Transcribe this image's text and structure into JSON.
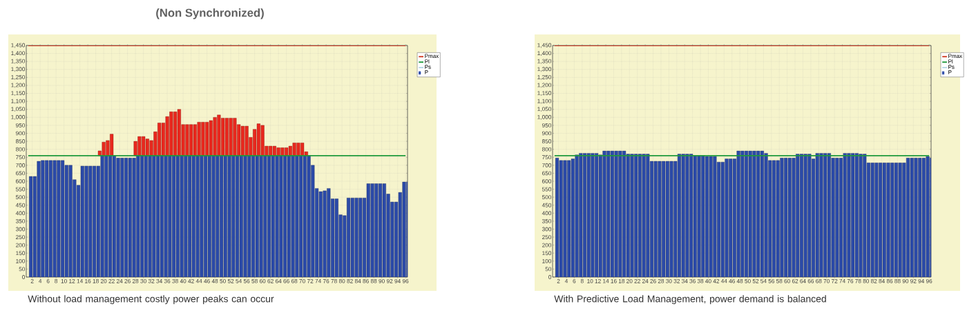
{
  "chart_data": [
    {
      "type": "bar",
      "title": "(Non Synchronized)",
      "stacked": true,
      "grid": true,
      "legend": "right",
      "categories": [
        null,
        "2",
        null,
        "4",
        null,
        "6",
        null,
        "8",
        null,
        "10",
        null,
        "12",
        null,
        "14",
        null,
        "16",
        null,
        "18",
        null,
        "20",
        null,
        "22",
        null,
        "24",
        null,
        "26",
        null,
        "28",
        null,
        "30",
        null,
        "32",
        null,
        "34",
        null,
        "36",
        null,
        "38",
        null,
        "40",
        null,
        "42",
        null,
        "44",
        null,
        "46",
        null,
        "48",
        null,
        "50",
        null,
        "52",
        null,
        "54",
        null,
        "56",
        null,
        "58",
        null,
        "60",
        null,
        "62",
        null,
        "64",
        null,
        "66",
        null,
        "68",
        null,
        "70",
        null,
        "72",
        null,
        "74",
        null,
        "76",
        null,
        "78",
        null,
        "80",
        null,
        "82",
        null,
        "84",
        null,
        "86",
        null,
        "88",
        null,
        "90",
        null,
        "92",
        null,
        "94",
        null,
        "96"
      ],
      "ylim": [
        0,
        1450
      ],
      "yticks": [
        0,
        50,
        100,
        150,
        200,
        250,
        300,
        350,
        400,
        450,
        500,
        550,
        600,
        650,
        700,
        750,
        800,
        850,
        900,
        950,
        {
          "value": 1000,
          "label": "1,000"
        },
        {
          "value": 1050,
          "label": "1,050"
        },
        {
          "value": 1100,
          "label": "1,100"
        },
        {
          "value": 1150,
          "label": "1,150"
        },
        {
          "value": 1200,
          "label": "1,200"
        },
        {
          "value": 1250,
          "label": "1,250"
        },
        {
          "value": 1300,
          "label": "1,300"
        },
        {
          "value": 1350,
          "label": "1,350"
        },
        {
          "value": 1400,
          "label": "1,400"
        },
        {
          "value": 1450,
          "label": "1,450"
        }
      ],
      "series": [
        {
          "name": "Pmax",
          "type": "line",
          "color": "#d23a22",
          "values": [
            1450,
            1450,
            1450,
            1450,
            1450,
            1450,
            1450,
            1450,
            1450,
            1450,
            1450,
            1450,
            1450,
            1450,
            1450,
            1450,
            1450,
            1450,
            1450,
            1450,
            1450,
            1450,
            1450,
            1450,
            1450,
            1450,
            1450,
            1450,
            1450,
            1450,
            1450,
            1450,
            1450,
            1450,
            1450,
            1450,
            1450,
            1450,
            1450,
            1450,
            1450,
            1450,
            1450,
            1450,
            1450,
            1450,
            1450,
            1450,
            1450,
            1450,
            1450,
            1450,
            1450,
            1450,
            1450,
            1450,
            1450,
            1450,
            1450,
            1450,
            1450,
            1450,
            1450,
            1450,
            1450,
            1450,
            1450,
            1450,
            1450,
            1450,
            1450,
            1450,
            1450,
            1450,
            1450,
            1450,
            1450,
            1450,
            1450,
            1450,
            1450,
            1450,
            1450,
            1450,
            1450,
            1450,
            1450,
            1450,
            1450,
            1450,
            1450,
            1450,
            1450,
            1450,
            1450,
            1450
          ]
        },
        {
          "name": "Pl",
          "type": "line",
          "color": "#1f9a3c",
          "values": [
            760,
            760,
            760,
            760,
            760,
            760,
            760,
            760,
            760,
            760,
            760,
            760,
            760,
            760,
            760,
            760,
            760,
            760,
            760,
            760,
            760,
            760,
            760,
            760,
            760,
            760,
            760,
            760,
            760,
            760,
            760,
            760,
            760,
            760,
            760,
            760,
            760,
            760,
            760,
            760,
            760,
            760,
            760,
            760,
            760,
            760,
            760,
            760,
            760,
            760,
            760,
            760,
            760,
            760,
            760,
            760,
            760,
            760,
            760,
            760,
            760,
            760,
            760,
            760,
            760,
            760,
            760,
            760,
            760,
            760,
            760,
            760,
            760,
            760,
            760,
            760,
            760,
            760,
            760,
            760,
            760,
            760,
            760,
            760,
            760,
            760,
            760,
            760,
            760,
            760,
            760,
            760,
            760,
            760,
            760,
            760
          ]
        },
        {
          "name": "Ps",
          "type": "line",
          "color": "#b8d8e8",
          "values": [
            null,
            null,
            null,
            null,
            null,
            null,
            null,
            null,
            null,
            null,
            null,
            null,
            null,
            null,
            null,
            null,
            null,
            null,
            null,
            null,
            null,
            null,
            null,
            null,
            null,
            null,
            null,
            null,
            null,
            null,
            null,
            null,
            null,
            null,
            null,
            null,
            null,
            null,
            null,
            null,
            null,
            null,
            null,
            null,
            null,
            null,
            null,
            null,
            null,
            null,
            null,
            null,
            null,
            null,
            null,
            null,
            null,
            null,
            null,
            null,
            null,
            null,
            null,
            null,
            null,
            null,
            null,
            null,
            null,
            null,
            null,
            null,
            null,
            null,
            null,
            null,
            null,
            null,
            null,
            null,
            null,
            null,
            null,
            null,
            null,
            null,
            null,
            null,
            null,
            null,
            null,
            null,
            null,
            null,
            null,
            null
          ]
        },
        {
          "name": "P",
          "color": "#2b4aa8",
          "values": [
            630,
            630,
            725,
            730,
            730,
            730,
            730,
            730,
            730,
            700,
            700,
            610,
            575,
            695,
            695,
            695,
            695,
            695,
            760,
            760,
            760,
            760,
            745,
            745,
            745,
            745,
            745,
            760,
            760,
            760,
            760,
            760,
            760,
            760,
            760,
            760,
            760,
            760,
            760,
            760,
            760,
            760,
            760,
            760,
            760,
            760,
            760,
            760,
            760,
            760,
            760,
            760,
            760,
            760,
            760,
            760,
            760,
            760,
            760,
            760,
            760,
            760,
            760,
            760,
            760,
            760,
            760,
            760,
            760,
            760,
            760,
            700,
            555,
            535,
            540,
            555,
            490,
            490,
            390,
            385,
            495,
            495,
            495,
            495,
            495,
            585,
            585,
            585,
            585,
            585,
            520,
            470,
            470,
            530,
            595,
            595
          ]
        },
        {
          "color": "#e8281e",
          "values": [
            null,
            null,
            null,
            null,
            null,
            null,
            null,
            null,
            null,
            null,
            null,
            null,
            null,
            null,
            null,
            null,
            null,
            null,
            30,
            85,
            95,
            135,
            null,
            null,
            null,
            null,
            null,
            90,
            120,
            120,
            105,
            95,
            150,
            205,
            205,
            245,
            275,
            275,
            290,
            195,
            195,
            195,
            195,
            210,
            210,
            210,
            220,
            240,
            255,
            235,
            235,
            235,
            235,
            195,
            185,
            185,
            115,
            165,
            200,
            190,
            60,
            60,
            60,
            50,
            50,
            50,
            60,
            80,
            80,
            80,
            25,
            null,
            null,
            null,
            null,
            null,
            null,
            null,
            null,
            null,
            null,
            null,
            null,
            null,
            null,
            null,
            null,
            null,
            null,
            null,
            null,
            null,
            null,
            null,
            null,
            null
          ]
        }
      ],
      "annotations": [
        "Without load management costly power peaks can occur"
      ]
    },
    {
      "type": "bar",
      "grid": true,
      "legend": "right",
      "categories": [
        null,
        "2",
        null,
        "4",
        null,
        "6",
        null,
        "8",
        null,
        "10",
        null,
        "12",
        null,
        "14",
        null,
        "16",
        null,
        "18",
        null,
        "20",
        null,
        "22",
        null,
        "24",
        null,
        "26",
        null,
        "28",
        null,
        "30",
        null,
        "32",
        null,
        "34",
        null,
        "36",
        null,
        "38",
        null,
        "40",
        null,
        "42",
        null,
        "44",
        null,
        "46",
        null,
        "48",
        null,
        "50",
        null,
        "52",
        null,
        "54",
        null,
        "56",
        null,
        "58",
        null,
        "60",
        null,
        "62",
        null,
        "64",
        null,
        "66",
        null,
        "68",
        null,
        "70",
        null,
        "72",
        null,
        "74",
        null,
        "76",
        null,
        "78",
        null,
        "80",
        null,
        "82",
        null,
        "84",
        null,
        "86",
        null,
        "88",
        null,
        "90",
        null,
        "92",
        null,
        "94",
        null,
        "96"
      ],
      "ylim": [
        0,
        1450
      ],
      "yticks": [
        0,
        50,
        100,
        150,
        200,
        250,
        300,
        350,
        400,
        450,
        500,
        550,
        600,
        650,
        700,
        750,
        800,
        850,
        900,
        950,
        {
          "value": 1000,
          "label": "1,000"
        },
        {
          "value": 1050,
          "label": "1,050"
        },
        {
          "value": 1100,
          "label": "1,100"
        },
        {
          "value": 1150,
          "label": "1,150"
        },
        {
          "value": 1200,
          "label": "1,200"
        },
        {
          "value": 1250,
          "label": "1,250"
        },
        {
          "value": 1300,
          "label": "1,300"
        },
        {
          "value": 1350,
          "label": "1,350"
        },
        {
          "value": 1400,
          "label": "1,400"
        },
        {
          "value": 1450,
          "label": "1,450"
        }
      ],
      "series": [
        {
          "name": "Pmax",
          "type": "line",
          "color": "#d23a22",
          "values": [
            1450,
            1450,
            1450,
            1450,
            1450,
            1450,
            1450,
            1450,
            1450,
            1450,
            1450,
            1450,
            1450,
            1450,
            1450,
            1450,
            1450,
            1450,
            1450,
            1450,
            1450,
            1450,
            1450,
            1450,
            1450,
            1450,
            1450,
            1450,
            1450,
            1450,
            1450,
            1450,
            1450,
            1450,
            1450,
            1450,
            1450,
            1450,
            1450,
            1450,
            1450,
            1450,
            1450,
            1450,
            1450,
            1450,
            1450,
            1450,
            1450,
            1450,
            1450,
            1450,
            1450,
            1450,
            1450,
            1450,
            1450,
            1450,
            1450,
            1450,
            1450,
            1450,
            1450,
            1450,
            1450,
            1450,
            1450,
            1450,
            1450,
            1450,
            1450,
            1450,
            1450,
            1450,
            1450,
            1450,
            1450,
            1450,
            1450,
            1450,
            1450,
            1450,
            1450,
            1450,
            1450,
            1450,
            1450,
            1450,
            1450,
            1450,
            1450,
            1450,
            1450,
            1450,
            1450,
            1450
          ]
        },
        {
          "name": "Pl",
          "type": "line",
          "color": "#1f9a3c",
          "values": [
            760,
            760,
            760,
            760,
            760,
            760,
            760,
            760,
            760,
            760,
            760,
            760,
            760,
            760,
            760,
            760,
            760,
            760,
            760,
            760,
            760,
            760,
            760,
            760,
            760,
            760,
            760,
            760,
            760,
            760,
            760,
            760,
            760,
            760,
            760,
            760,
            760,
            760,
            760,
            760,
            760,
            760,
            760,
            760,
            760,
            760,
            760,
            760,
            760,
            760,
            760,
            760,
            760,
            760,
            760,
            760,
            760,
            760,
            760,
            760,
            760,
            760,
            760,
            760,
            760,
            760,
            760,
            760,
            760,
            760,
            760,
            760,
            760,
            760,
            760,
            760,
            760,
            760,
            760,
            760,
            760,
            760,
            760,
            760,
            760,
            760,
            760,
            760,
            760,
            760,
            760,
            760,
            760,
            760,
            760,
            760
          ]
        },
        {
          "name": "Ps",
          "type": "line",
          "color": "#b8d8e8",
          "values": [
            null,
            null,
            null,
            null,
            null,
            null,
            null,
            null,
            null,
            null,
            null,
            null,
            null,
            null,
            null,
            null,
            null,
            null,
            null,
            null,
            null,
            null,
            null,
            null,
            null,
            null,
            null,
            null,
            null,
            null,
            null,
            null,
            null,
            null,
            null,
            null,
            null,
            null,
            null,
            null,
            null,
            null,
            null,
            null,
            null,
            null,
            null,
            null,
            null,
            null,
            null,
            null,
            null,
            null,
            null,
            null,
            null,
            null,
            null,
            null,
            null,
            null,
            null,
            null,
            null,
            null,
            null,
            null,
            null,
            null,
            null,
            null,
            null,
            null,
            null,
            null,
            null,
            null,
            null,
            null,
            null,
            null,
            null,
            null,
            null,
            null,
            null,
            null,
            null,
            null,
            null,
            null,
            null,
            null,
            null,
            null
          ]
        },
        {
          "name": "P",
          "color": "#2b4aa8",
          "values": [
            745,
            730,
            730,
            730,
            740,
            765,
            775,
            775,
            775,
            775,
            775,
            765,
            790,
            790,
            790,
            790,
            790,
            790,
            770,
            770,
            770,
            770,
            770,
            770,
            725,
            725,
            725,
            725,
            725,
            725,
            725,
            770,
            770,
            770,
            770,
            760,
            760,
            760,
            755,
            755,
            755,
            720,
            720,
            740,
            740,
            740,
            790,
            790,
            790,
            790,
            790,
            790,
            790,
            775,
            730,
            730,
            730,
            745,
            745,
            745,
            745,
            770,
            770,
            770,
            770,
            740,
            775,
            775,
            775,
            775,
            745,
            745,
            745,
            775,
            775,
            775,
            775,
            770,
            770,
            715,
            715,
            715,
            715,
            715,
            715,
            715,
            715,
            715,
            715,
            745,
            745,
            745,
            745,
            745,
            755,
            745
          ]
        }
      ],
      "annotations": [
        "With Predictive Load Management, power demand is balanced"
      ]
    }
  ]
}
